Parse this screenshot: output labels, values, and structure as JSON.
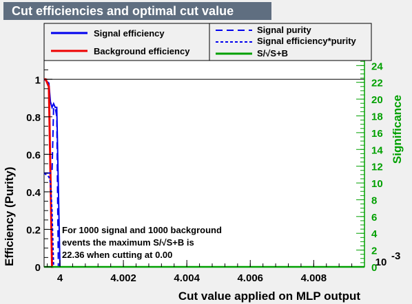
{
  "title": "Cut efficiencies and optimal cut value",
  "colors": {
    "signal": "#0000ee",
    "background": "#ee0000",
    "significance": "#00a000",
    "title_bg": "#5f6e80"
  },
  "legend": {
    "signal_efficiency": "Signal efficiency",
    "background_efficiency": "Background efficiency",
    "signal_purity": "Signal purity",
    "signal_eff_purity": "Signal efficiency*purity",
    "significance": "S/√S+B"
  },
  "annotation": {
    "line1": "For 1000 signal and 1000 background",
    "line2": "events the maximum S/√S+B is",
    "line3": "22.36 when cutting at  0.00"
  },
  "chart_data": {
    "type": "line",
    "title": "Cut efficiencies and optimal cut value",
    "xlabel": "Cut value applied on MLP output",
    "ylabel": "Efficiency (Purity)",
    "y2label": "Significance",
    "x_exponent_label": "10",
    "x_exponent_power": "-3",
    "xlim": [
      3.9995,
      4.0096
    ],
    "ylim": [
      0,
      1.1
    ],
    "y2lim": [
      0,
      24.6
    ],
    "xticks": [
      "4",
      "4.002",
      "4.004",
      "4.006",
      "4.008"
    ],
    "xtick_values": [
      4.0,
      4.002,
      4.004,
      4.006,
      4.008
    ],
    "yticks": [
      "0",
      "0.2",
      "0.4",
      "0.6",
      "0.8",
      "1"
    ],
    "ytick_values": [
      0,
      0.2,
      0.4,
      0.6,
      0.8,
      1.0
    ],
    "y2ticks": [
      "0",
      "2",
      "4",
      "6",
      "8",
      "10",
      "12",
      "14",
      "16",
      "18",
      "20",
      "22",
      "24"
    ],
    "y2tick_values": [
      0,
      2,
      4,
      6,
      8,
      10,
      12,
      14,
      16,
      18,
      20,
      22,
      24
    ],
    "series": [
      {
        "name": "Signal efficiency",
        "style": "solid",
        "x": [
          3.9995,
          3.99965,
          3.9997,
          3.99975,
          3.9998,
          3.99985,
          3.9999,
          4.0
        ],
        "y": [
          1.0,
          0.98,
          0.88,
          0.85,
          0.87,
          0.85,
          0.85,
          0.0
        ]
      },
      {
        "name": "Background efficiency",
        "style": "solid",
        "x": [
          3.9995,
          3.99955,
          3.9996,
          3.99965,
          3.9997,
          3.99975,
          3.9998
        ],
        "y": [
          1.0,
          1.0,
          0.98,
          0.96,
          0.5,
          0.0,
          0.0
        ]
      },
      {
        "name": "Signal purity",
        "style": "dashed",
        "x": [
          3.9995,
          3.99975,
          3.9998,
          3.99985,
          3.9999,
          3.99995
        ],
        "y": [
          0.5,
          0.5,
          0.85,
          0.85,
          0.8,
          0.0
        ]
      },
      {
        "name": "Signal efficiency*purity",
        "style": "dotted",
        "x": [
          3.9995,
          3.99965,
          3.9997,
          3.99975,
          3.9998
        ],
        "y": [
          0.5,
          0.48,
          0.45,
          0.3,
          0.0
        ]
      },
      {
        "name": "S/√S+B",
        "style": "solid",
        "axis": "right",
        "x": [
          3.9995,
          4.0096
        ],
        "y": [
          0.0,
          0.0
        ]
      }
    ]
  }
}
